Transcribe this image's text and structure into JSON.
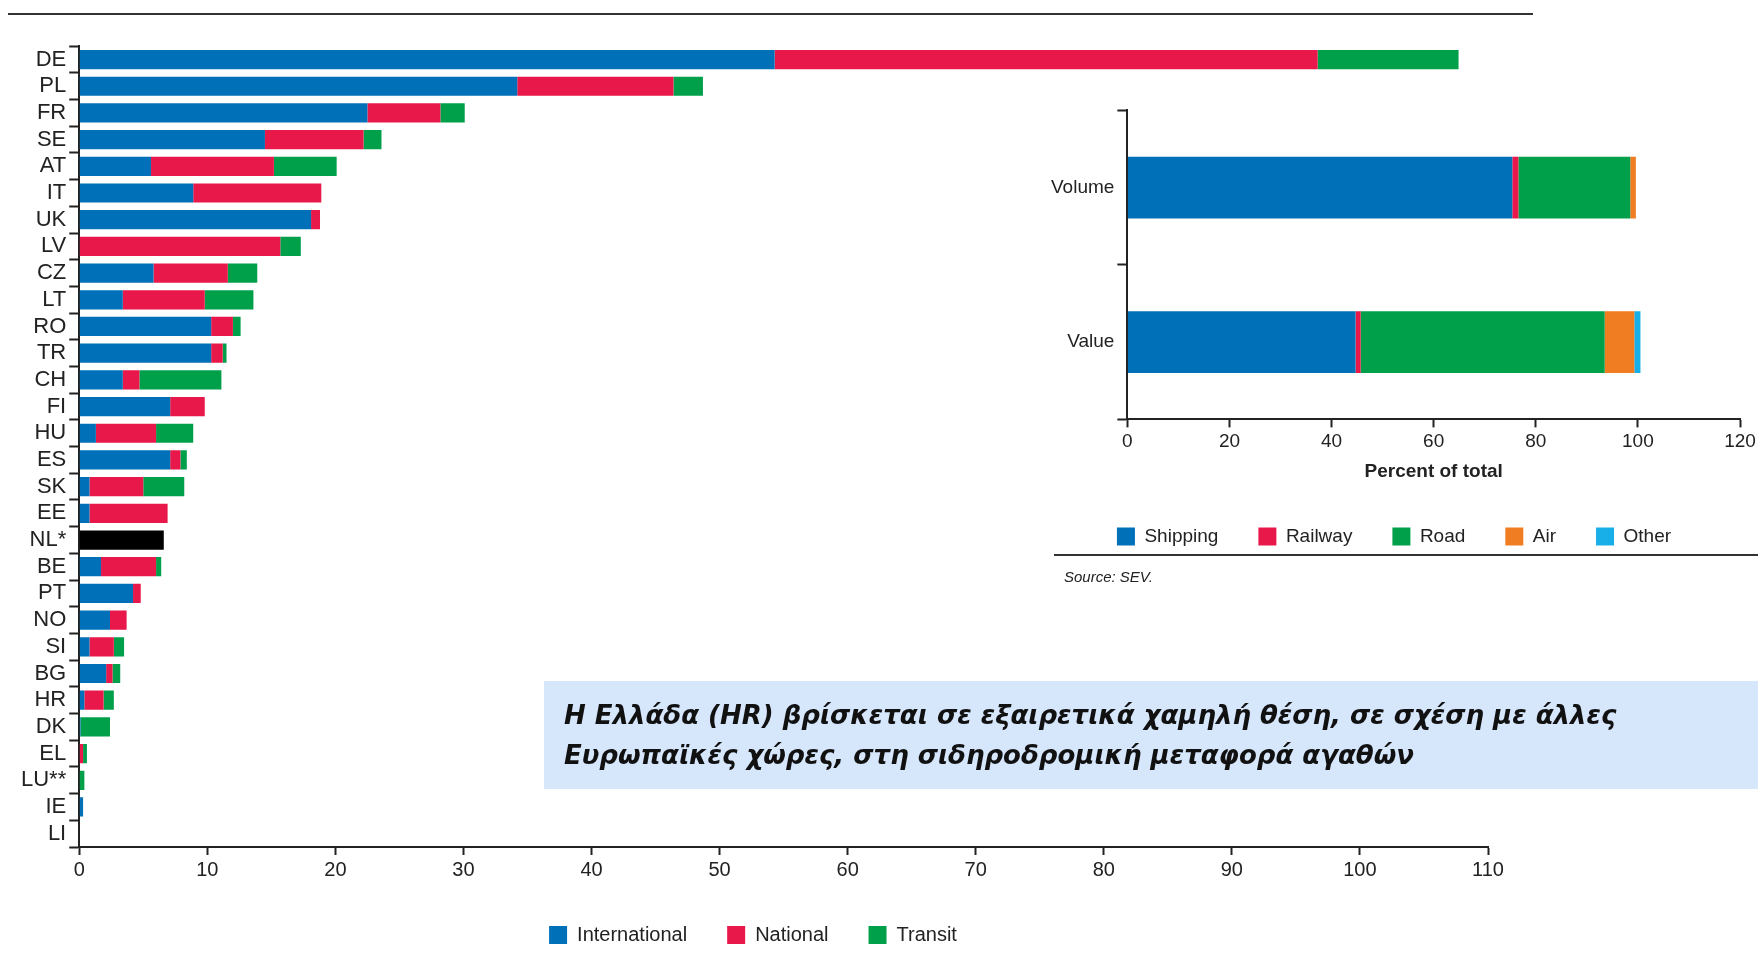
{
  "chart_data": [
    {
      "type": "bar",
      "orientation": "horizontal",
      "stacked": true,
      "categories": [
        "DE",
        "PL",
        "FR",
        "SE",
        "AT",
        "IT",
        "UK",
        "LV",
        "CZ",
        "LT",
        "RO",
        "TR",
        "CH",
        "FI",
        "HU",
        "ES",
        "SK",
        "EE",
        "NL*",
        "BE",
        "PT",
        "NO",
        "SI",
        "BG",
        "HR",
        "DK",
        "EL",
        "LU**",
        "IE",
        "LI"
      ],
      "series": [
        {
          "name": "International",
          "color": "#0070b8",
          "values": [
            54.3,
            34.2,
            22.5,
            14.5,
            5.6,
            8.9,
            18.1,
            0,
            5.8,
            3.4,
            10.3,
            10.3,
            3.4,
            7.1,
            1.3,
            7.1,
            0.8,
            0.8,
            null,
            1.7,
            4.2,
            2.4,
            0.8,
            2.1,
            0.4,
            0.1,
            0,
            0,
            0.3,
            null
          ]
        },
        {
          "name": "National",
          "color": "#e8194a",
          "values": [
            42.4,
            12.2,
            5.7,
            7.7,
            9.6,
            10.0,
            0.7,
            15.7,
            5.8,
            6.4,
            1.7,
            0.9,
            1.3,
            2.7,
            4.7,
            0.8,
            4.2,
            6.1,
            null,
            4.3,
            0.6,
            1.3,
            1.9,
            0.5,
            1.5,
            0,
            0.3,
            0,
            0,
            null
          ]
        },
        {
          "name": "Transit",
          "color": "#00a04b",
          "values": [
            11.0,
            2.3,
            1.9,
            1.4,
            4.9,
            0,
            0,
            1.6,
            2.3,
            3.8,
            0.6,
            0.3,
            6.4,
            0,
            2.9,
            0.5,
            3.2,
            0,
            null,
            0.4,
            0,
            0,
            0.8,
            0.6,
            0.8,
            2.3,
            0.3,
            0.4,
            0,
            null
          ]
        },
        {
          "color": "#000000",
          "values": [
            null,
            null,
            null,
            null,
            null,
            null,
            null,
            null,
            null,
            null,
            null,
            null,
            null,
            null,
            null,
            null,
            null,
            null,
            6.6,
            null,
            null,
            null,
            null,
            null,
            null,
            null,
            null,
            null,
            null,
            null
          ]
        }
      ],
      "xlim": [
        0,
        110
      ],
      "xticks": [
        0,
        10,
        20,
        30,
        40,
        50,
        60,
        70,
        80,
        90,
        100,
        110
      ],
      "grid": false,
      "legend": "bottom",
      "annotations": [
        "Η Ελλάδα (HR) βρίσκεται σε εξαιρετικά χαμηλή θέση,  σε σχέση με άλλες Ευρωπαϊκές χώρες, στη σιδηροδρομική μεταφορά αγαθών"
      ]
    },
    {
      "type": "bar",
      "orientation": "horizontal",
      "stacked": true,
      "categories": [
        "Volume",
        "Value"
      ],
      "series": [
        {
          "name": "Shipping",
          "color": "#0070b8",
          "values": [
            75.4,
            44.7
          ]
        },
        {
          "name": "Railway",
          "color": "#e8194a",
          "values": [
            1.2,
            1.0
          ]
        },
        {
          "name": "Road",
          "color": "#00a04b",
          "values": [
            21.9,
            47.8
          ]
        },
        {
          "name": "Air",
          "color": "#f07d22",
          "values": [
            1.1,
            5.8
          ]
        },
        {
          "name": "Other",
          "color": "#18aee8",
          "values": [
            0,
            1.2
          ]
        }
      ],
      "xlim": [
        0,
        120
      ],
      "xticks": [
        0,
        20,
        40,
        60,
        80,
        100,
        120
      ],
      "xlabel": "Percent of total",
      "grid": false,
      "legend": "bottom",
      "annotations": [
        "Source: SEV."
      ]
    }
  ]
}
